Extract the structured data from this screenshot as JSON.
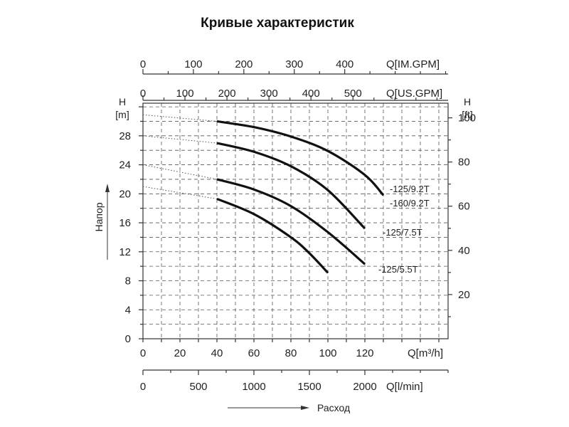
{
  "chart_data": {
    "type": "line",
    "title": "Кривые характеристик",
    "xlabel": "Расход",
    "ylabel": "Напор",
    "grid": true,
    "x_axis": {
      "unit_label": "Q[m³/h]",
      "ticks": [
        0,
        20,
        40,
        60,
        80,
        100,
        120
      ],
      "lim": [
        0,
        165
      ]
    },
    "y_axis": {
      "unit_top": "H",
      "unit_bottom": "[m]",
      "ticks": [
        0,
        4,
        8,
        12,
        16,
        20,
        24,
        28
      ],
      "lim": [
        0,
        32.5
      ]
    },
    "y_axis_right": {
      "unit_top": "H",
      "unit_bottom": "[ft]",
      "ticks": [
        20,
        40,
        60,
        80,
        100
      ]
    },
    "secondary_x_axes": [
      {
        "unit_label": "Q[IM.GPM]",
        "ticks": [
          0,
          100,
          200,
          300,
          400
        ]
      },
      {
        "unit_label": "Q[US.GPM]",
        "ticks": [
          0,
          100,
          200,
          300,
          400,
          500
        ]
      },
      {
        "unit_label": "Q[l/min]",
        "ticks": [
          0,
          500,
          1000,
          1500,
          2000
        ]
      }
    ],
    "series": [
      {
        "name": "-125/9.2T",
        "x": [
          40,
          60,
          80,
          100,
          120,
          130
        ],
        "y": [
          30.0,
          29.2,
          27.9,
          25.9,
          22.6,
          19.8
        ],
        "extrapolated": [
          [
            0,
            30.9
          ],
          [
            40,
            30.0
          ]
        ]
      },
      {
        "name": "-160/9.2T",
        "x": [
          40,
          60,
          80,
          100,
          120
        ],
        "y": [
          27.0,
          25.8,
          23.8,
          20.5,
          15.2
        ],
        "extrapolated": [
          [
            0,
            28.0
          ],
          [
            40,
            27.0
          ]
        ]
      },
      {
        "name": "-125/7.5T",
        "x": [
          40,
          60,
          80,
          100,
          120
        ],
        "y": [
          22.0,
          20.6,
          18.3,
          14.7,
          10.3
        ],
        "extrapolated": [
          [
            0,
            24.0
          ],
          [
            40,
            22.0
          ]
        ]
      },
      {
        "name": "-125/5.5T",
        "x": [
          40,
          60,
          80,
          90,
          100
        ],
        "y": [
          19.3,
          17.2,
          14.0,
          11.8,
          9.1
        ],
        "extrapolated": [
          [
            0,
            21.0
          ],
          [
            40,
            19.3
          ]
        ]
      }
    ]
  }
}
